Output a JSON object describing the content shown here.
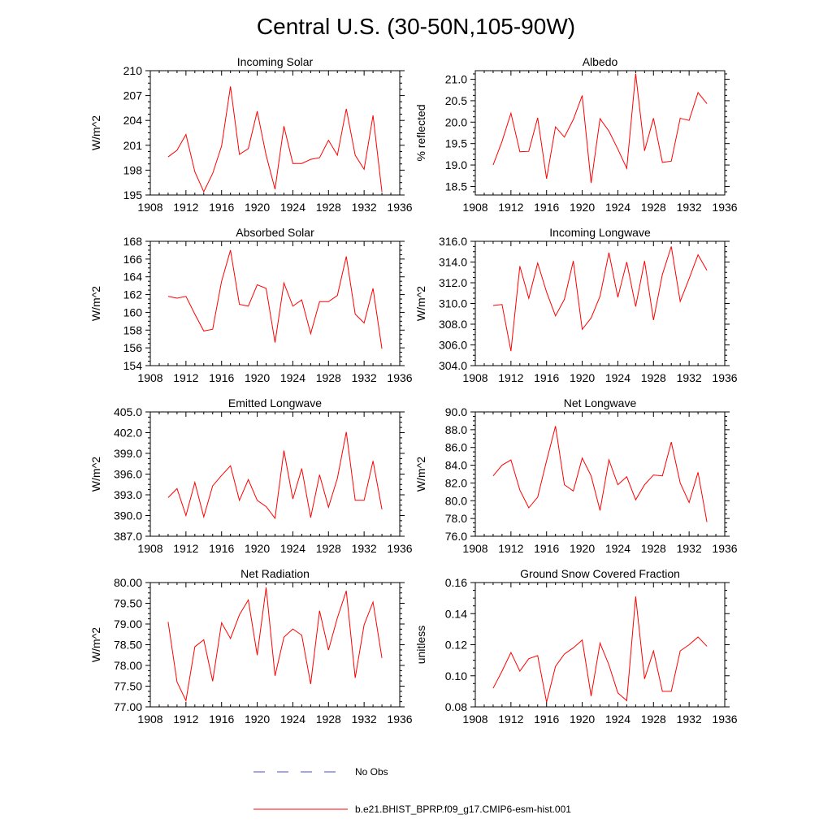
{
  "figure": {
    "title": "Central U.S. (30-50N,105-90W)"
  },
  "legend": {
    "items": [
      {
        "label": "No Obs",
        "color": "#4b4bc8",
        "dash": true
      },
      {
        "label": "b.e21.BHIST_BPRP.f09_g17.CMIP6-esm-hist.001",
        "color": "#ff0000",
        "dash": false
      }
    ]
  },
  "colors": {
    "series": "#ff0000",
    "axis": "#000000"
  },
  "chart_data": [
    {
      "type": "line",
      "title": "Incoming Solar",
      "ylabel": "W/m^2",
      "xlim": [
        1908,
        1936
      ],
      "ylim": [
        195,
        210
      ],
      "xticks": [
        1908,
        1912,
        1916,
        1920,
        1924,
        1928,
        1932,
        1936
      ],
      "yticks": [
        "195",
        "198",
        "201",
        "204",
        "207",
        "210"
      ],
      "x": [
        1910,
        1911,
        1912,
        1913,
        1914,
        1915,
        1916,
        1917,
        1918,
        1919,
        1920,
        1921,
        1922,
        1923,
        1924,
        1925,
        1926,
        1927,
        1928,
        1929,
        1930,
        1931,
        1932,
        1933,
        1934
      ],
      "values": [
        199.6,
        200.4,
        202.3,
        197.8,
        195.4,
        197.6,
        200.9,
        208.1,
        199.9,
        200.6,
        205.1,
        199.8,
        195.7,
        203.3,
        198.8,
        198.8,
        199.3,
        199.5,
        201.6,
        199.8,
        205.4,
        199.8,
        198.1,
        204.6,
        195.4
      ]
    },
    {
      "type": "line",
      "title": "Albedo",
      "ylabel": "% reflected",
      "xlim": [
        1908,
        1936
      ],
      "ylim": [
        18.3,
        21.2
      ],
      "xticks": [
        1908,
        1912,
        1916,
        1920,
        1924,
        1928,
        1932,
        1936
      ],
      "yticks": [
        "18.5",
        "19.0",
        "19.5",
        "20.0",
        "20.5",
        "21.0"
      ],
      "x": [
        1910,
        1911,
        1912,
        1913,
        1914,
        1915,
        1916,
        1917,
        1918,
        1919,
        1920,
        1921,
        1922,
        1923,
        1924,
        1925,
        1926,
        1927,
        1928,
        1929,
        1930,
        1931,
        1932,
        1933,
        1934
      ],
      "values": [
        19.0,
        19.55,
        20.21,
        19.31,
        19.32,
        20.1,
        18.68,
        19.89,
        19.65,
        20.06,
        20.62,
        18.58,
        20.08,
        19.79,
        19.37,
        18.92,
        21.13,
        19.33,
        20.09,
        19.06,
        19.09,
        20.09,
        20.04,
        20.69,
        20.43
      ]
    },
    {
      "type": "line",
      "title": "Absorbed Solar",
      "ylabel": "W/m^2",
      "xlim": [
        1908,
        1936
      ],
      "ylim": [
        154,
        168
      ],
      "xticks": [
        1908,
        1912,
        1916,
        1920,
        1924,
        1928,
        1932,
        1936
      ],
      "yticks": [
        "154",
        "156",
        "158",
        "160",
        "162",
        "164",
        "166",
        "168"
      ],
      "x": [
        1910,
        1911,
        1912,
        1913,
        1914,
        1915,
        1916,
        1917,
        1918,
        1919,
        1920,
        1921,
        1922,
        1923,
        1924,
        1925,
        1926,
        1927,
        1928,
        1929,
        1930,
        1931,
        1932,
        1933,
        1934
      ],
      "values": [
        161.8,
        161.6,
        161.8,
        159.8,
        157.9,
        158.1,
        163.5,
        167.0,
        160.9,
        160.7,
        163.1,
        162.7,
        156.6,
        163.3,
        160.7,
        161.4,
        157.6,
        161.2,
        161.2,
        161.9,
        166.3,
        159.8,
        158.8,
        162.7,
        155.9
      ]
    },
    {
      "type": "line",
      "title": "Incoming Longwave",
      "ylabel": "W/m^2",
      "xlim": [
        1908,
        1936
      ],
      "ylim": [
        304.0,
        316.0
      ],
      "xticks": [
        1908,
        1912,
        1916,
        1920,
        1924,
        1928,
        1932,
        1936
      ],
      "yticks": [
        "304.0",
        "306.0",
        "308.0",
        "310.0",
        "312.0",
        "314.0",
        "316.0"
      ],
      "x": [
        1910,
        1911,
        1912,
        1913,
        1914,
        1915,
        1916,
        1917,
        1918,
        1919,
        1920,
        1921,
        1922,
        1923,
        1924,
        1925,
        1926,
        1927,
        1928,
        1929,
        1930,
        1931,
        1932,
        1933,
        1934
      ],
      "values": [
        309.8,
        309.9,
        305.4,
        313.6,
        310.5,
        313.9,
        311.1,
        308.8,
        310.4,
        314.1,
        307.5,
        308.6,
        310.7,
        314.9,
        310.6,
        314.0,
        309.7,
        314.1,
        308.4,
        312.8,
        315.5,
        310.2,
        312.4,
        314.7,
        313.2
      ]
    },
    {
      "type": "line",
      "title": "Emitted Longwave",
      "ylabel": "W/m^2",
      "xlim": [
        1908,
        1936
      ],
      "ylim": [
        387.0,
        405.0
      ],
      "xticks": [
        1908,
        1912,
        1916,
        1920,
        1924,
        1928,
        1932,
        1936
      ],
      "yticks": [
        "387.0",
        "390.0",
        "393.0",
        "396.0",
        "399.0",
        "402.0",
        "405.0"
      ],
      "x": [
        1910,
        1911,
        1912,
        1913,
        1914,
        1915,
        1916,
        1917,
        1918,
        1919,
        1920,
        1921,
        1922,
        1923,
        1924,
        1925,
        1926,
        1927,
        1928,
        1929,
        1930,
        1931,
        1932,
        1933,
        1934
      ],
      "values": [
        392.6,
        393.9,
        390.0,
        394.8,
        389.8,
        394.3,
        395.8,
        397.2,
        392.2,
        395.2,
        392.2,
        391.3,
        389.6,
        399.4,
        392.4,
        396.8,
        389.7,
        395.9,
        391.2,
        395.4,
        402.1,
        392.2,
        392.2,
        397.9,
        390.9
      ]
    },
    {
      "type": "line",
      "title": "Net Longwave",
      "ylabel": "W/m^2",
      "xlim": [
        1908,
        1936
      ],
      "ylim": [
        76.0,
        90.0
      ],
      "xticks": [
        1908,
        1912,
        1916,
        1920,
        1924,
        1928,
        1932,
        1936
      ],
      "yticks": [
        "76.0",
        "78.0",
        "80.0",
        "82.0",
        "84.0",
        "86.0",
        "88.0",
        "90.0"
      ],
      "x": [
        1910,
        1911,
        1912,
        1913,
        1914,
        1915,
        1916,
        1917,
        1918,
        1919,
        1920,
        1921,
        1922,
        1923,
        1924,
        1925,
        1926,
        1927,
        1928,
        1929,
        1930,
        1931,
        1932,
        1933,
        1934
      ],
      "values": [
        82.8,
        84.0,
        84.6,
        81.2,
        79.2,
        80.4,
        84.5,
        88.4,
        81.8,
        81.1,
        84.8,
        82.8,
        78.9,
        84.6,
        81.8,
        82.7,
        80.1,
        81.8,
        82.9,
        82.8,
        86.6,
        82.0,
        79.8,
        83.2,
        77.6
      ]
    },
    {
      "type": "line",
      "title": "Net Radiation",
      "ylabel": "W/m^2",
      "xlim": [
        1908,
        1936
      ],
      "ylim": [
        77.0,
        80.0
      ],
      "xticks": [
        1908,
        1912,
        1916,
        1920,
        1924,
        1928,
        1932,
        1936
      ],
      "yticks": [
        "77.00",
        "77.50",
        "78.00",
        "78.50",
        "79.00",
        "79.50",
        "80.00"
      ],
      "x": [
        1910,
        1911,
        1912,
        1913,
        1914,
        1915,
        1916,
        1917,
        1918,
        1919,
        1920,
        1921,
        1922,
        1923,
        1924,
        1925,
        1926,
        1927,
        1928,
        1929,
        1930,
        1931,
        1932,
        1933,
        1934
      ],
      "values": [
        79.05,
        77.6,
        77.15,
        78.45,
        78.62,
        77.62,
        79.03,
        78.65,
        79.22,
        79.58,
        78.25,
        79.88,
        77.75,
        78.68,
        78.88,
        78.73,
        77.55,
        79.32,
        78.37,
        79.15,
        79.8,
        77.7,
        78.98,
        79.53,
        78.18
      ]
    },
    {
      "type": "line",
      "title": "Ground Snow Covered Fraction",
      "ylabel": "unitless",
      "xlim": [
        1908,
        1936
      ],
      "ylim": [
        0.08,
        0.16
      ],
      "xticks": [
        1908,
        1912,
        1916,
        1920,
        1924,
        1928,
        1932,
        1936
      ],
      "yticks": [
        "0.08",
        "0.10",
        "0.12",
        "0.14",
        "0.16"
      ],
      "x": [
        1910,
        1911,
        1912,
        1913,
        1914,
        1915,
        1916,
        1917,
        1918,
        1919,
        1920,
        1921,
        1922,
        1923,
        1924,
        1925,
        1926,
        1927,
        1928,
        1929,
        1930,
        1931,
        1932,
        1933,
        1934
      ],
      "values": [
        0.092,
        0.103,
        0.115,
        0.103,
        0.111,
        0.113,
        0.083,
        0.106,
        0.114,
        0.118,
        0.123,
        0.087,
        0.121,
        0.107,
        0.089,
        0.084,
        0.151,
        0.098,
        0.116,
        0.09,
        0.09,
        0.116,
        0.12,
        0.125,
        0.119
      ]
    }
  ]
}
